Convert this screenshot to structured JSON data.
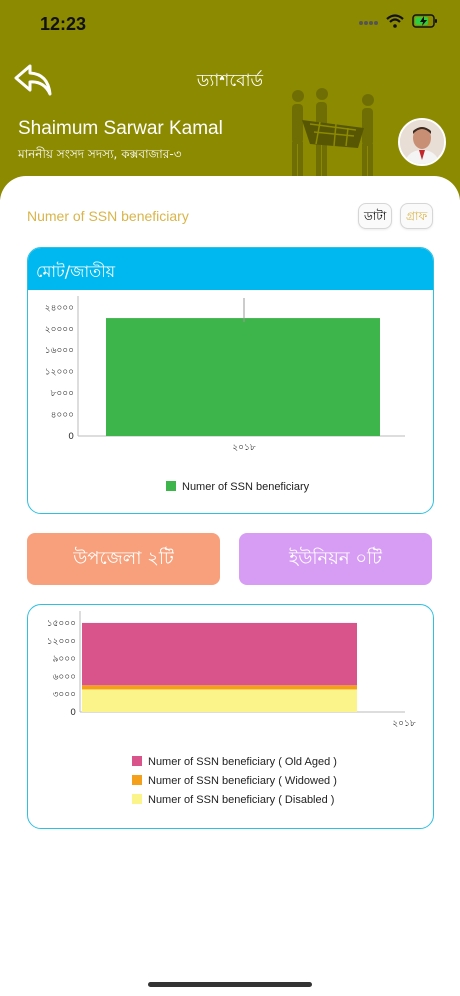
{
  "status_bar": {
    "time": "12:23"
  },
  "header": {
    "title": "ড্যাশবোর্ড",
    "user_name": "Shaimum Sarwar Kamal",
    "user_subtitle": "মাননীয় সংসদ সদস্য, কক্সবাজার-৩"
  },
  "section": {
    "title": "Numer of SSN beneficiary",
    "toggle_data": "ডাটা",
    "toggle_graph": "গ্রাফ"
  },
  "card1": {
    "header": "মোট/জাতীয়"
  },
  "buttons": {
    "upazila": "উপজেলা ২টি",
    "union": "ইউনিয়ন ০টি"
  },
  "colors": {
    "header_bg": "#8c8a00",
    "card_border": "#2fc0e0",
    "bar_green": "#3db54a",
    "old_aged": "#d9548a",
    "widowed": "#f5a01a",
    "disabled": "#fbf48a"
  },
  "chart_data": [
    {
      "type": "bar",
      "categories": [
        "২০১৮"
      ],
      "series": [
        {
          "name": "Numer of SSN beneficiary",
          "values": [
            22000
          ],
          "color": "#3db54a"
        }
      ],
      "y_ticks": [
        "0",
        "৪০০০",
        "৮০০০",
        "১২০০০",
        "১৬০০০",
        "২০০০০",
        "২৪০০০"
      ],
      "ylim": [
        0,
        25000
      ],
      "legend": "bottom-center"
    },
    {
      "type": "bar",
      "stacked": true,
      "categories": [
        "২০১৮"
      ],
      "series": [
        {
          "name": "Numer of SSN beneficiary ( Disabled )",
          "values": [
            3800
          ],
          "color": "#fbf48a"
        },
        {
          "name": "Numer of SSN beneficiary ( Widowed )",
          "values": [
            700
          ],
          "color": "#f5a01a"
        },
        {
          "name": "Numer of SSN beneficiary ( Old Aged )",
          "values": [
            10500
          ],
          "color": "#d9548a"
        }
      ],
      "legend_order": [
        "Numer of SSN beneficiary ( Old Aged )",
        "Numer of SSN beneficiary ( Widowed )",
        "Numer of SSN beneficiary ( Disabled )"
      ],
      "y_ticks": [
        "0",
        "৩০০০",
        "৬০০০",
        "৯০০০",
        "১২০০০",
        "১৫০০০"
      ],
      "ylim": [
        0,
        16000
      ],
      "legend": "bottom-center"
    }
  ]
}
